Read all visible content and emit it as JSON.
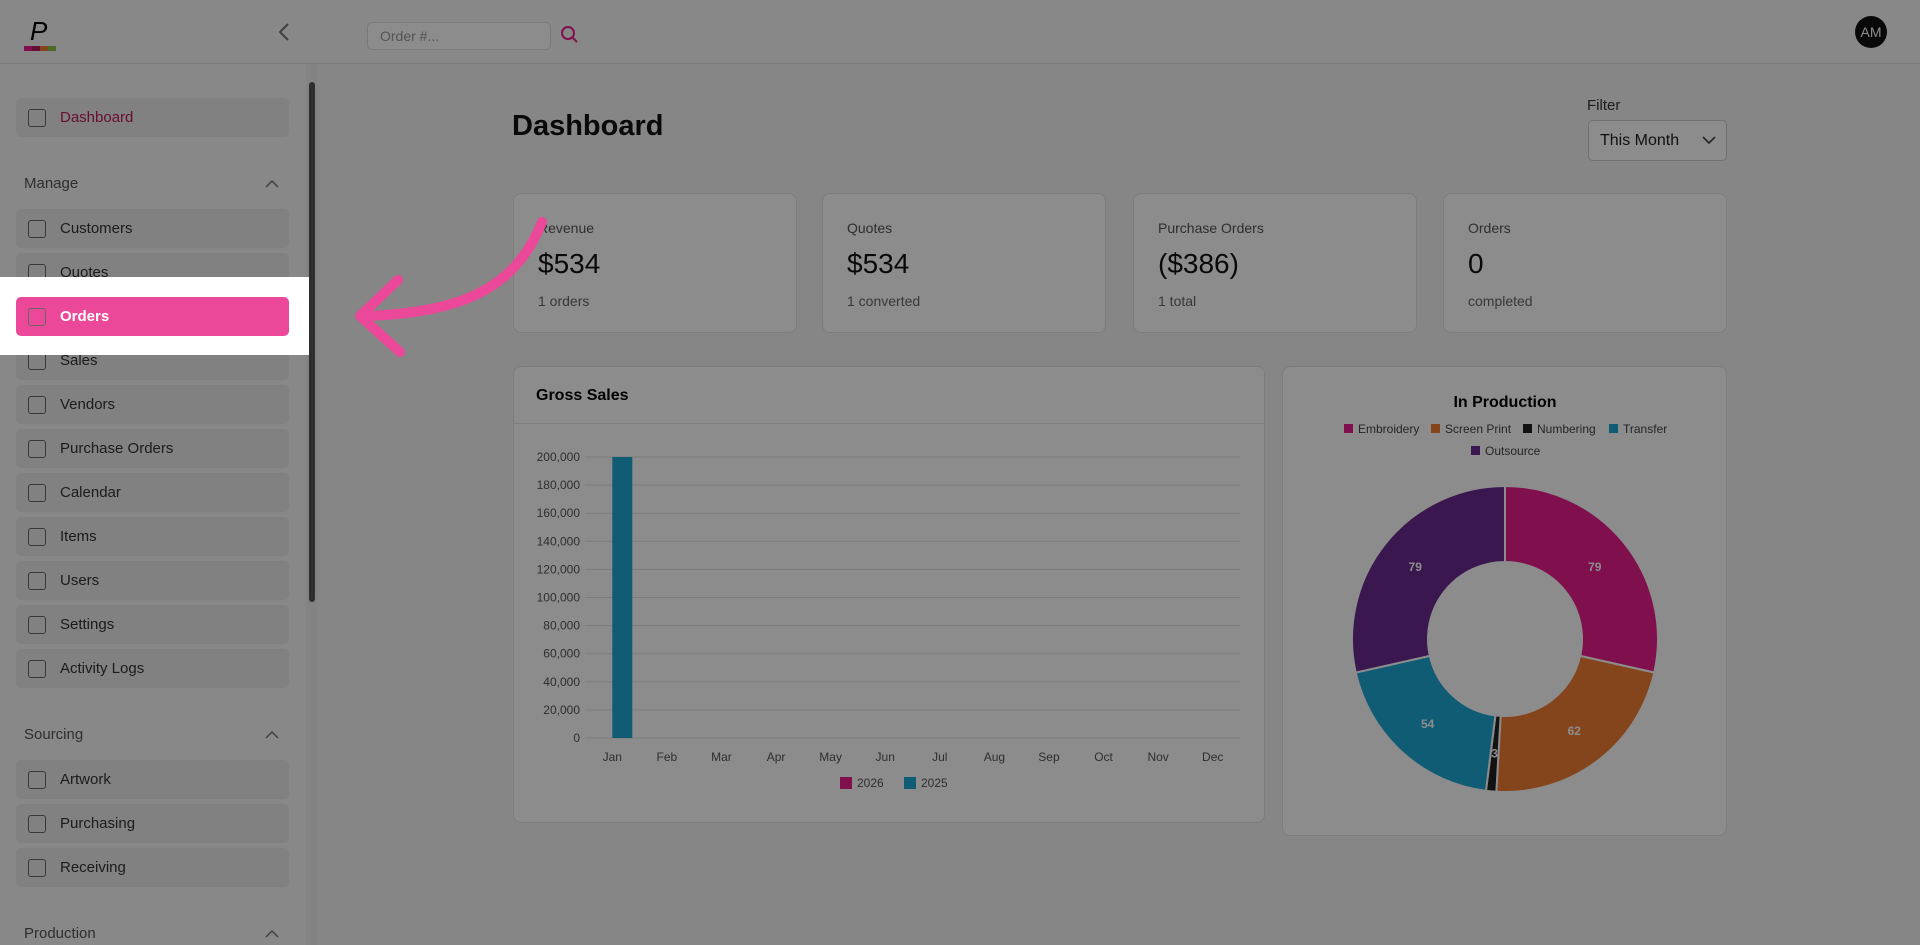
{
  "header": {
    "search_placeholder": "Order #...",
    "avatar": "AM"
  },
  "sidebar": {
    "dashboard": "Dashboard",
    "sections": [
      {
        "title": "Manage",
        "items": [
          "Customers",
          "Quotes",
          "Orders",
          "Sales",
          "Vendors",
          "Purchase Orders",
          "Calendar",
          "Items",
          "Users",
          "Settings",
          "Activity Logs"
        ]
      },
      {
        "title": "Sourcing",
        "items": [
          "Artwork",
          "Purchasing",
          "Receiving"
        ]
      },
      {
        "title": "Production"
      }
    ],
    "highlight": "Orders"
  },
  "main": {
    "title": "Dashboard",
    "filter": {
      "label": "Filter",
      "value": "This Month"
    },
    "cards": [
      {
        "title": "Revenue",
        "value": "$534",
        "note": "1 orders"
      },
      {
        "title": "Quotes",
        "value": "$534",
        "note": "1 converted"
      },
      {
        "title": "Purchase Orders",
        "value": "($386)",
        "note": "1 total"
      },
      {
        "title": "Orders",
        "value": "0",
        "note": "completed"
      }
    ]
  },
  "chart_data": [
    {
      "type": "bar",
      "title": "Gross Sales",
      "categories": [
        "Jan",
        "Feb",
        "Mar",
        "Apr",
        "May",
        "Jun",
        "Jul",
        "Aug",
        "Sep",
        "Oct",
        "Nov",
        "Dec"
      ],
      "series": [
        {
          "name": "2026",
          "color": "#e91e8c",
          "values": [
            0,
            0,
            0,
            0,
            0,
            0,
            0,
            0,
            0,
            0,
            0,
            0
          ]
        },
        {
          "name": "2025",
          "color": "#1fa8d6",
          "values": [
            200000,
            0,
            0,
            0,
            0,
            0,
            0,
            0,
            0,
            0,
            0,
            0
          ]
        }
      ],
      "ylim": [
        0,
        200000
      ],
      "yticks": [
        0,
        {
          "value": 20000,
          "label": "20,000"
        },
        {
          "value": 40000,
          "label": "40,000"
        },
        {
          "value": 60000,
          "label": "60,000"
        },
        {
          "value": 80000,
          "label": "80,000"
        },
        {
          "value": 100000,
          "label": "100,000"
        },
        {
          "value": 120000,
          "label": "120,000"
        },
        {
          "value": 140000,
          "label": "140,000"
        },
        {
          "value": 160000,
          "label": "160,000"
        },
        {
          "value": 180000,
          "label": "180,000"
        },
        {
          "value": 200000,
          "label": "200,000"
        }
      ],
      "grid": true,
      "legend": "bottom"
    },
    {
      "type": "donut",
      "title": "In Production",
      "categories": [
        "Embroidery",
        "Screen Print",
        "Numbering",
        "Transfer",
        "Outsource"
      ],
      "values": [
        79,
        62,
        3,
        54,
        79
      ],
      "colors": [
        "#e91e8c",
        "#f07f35",
        "#222222",
        "#1fa8d6",
        "#6a2c91"
      ],
      "legend": "top"
    }
  ]
}
